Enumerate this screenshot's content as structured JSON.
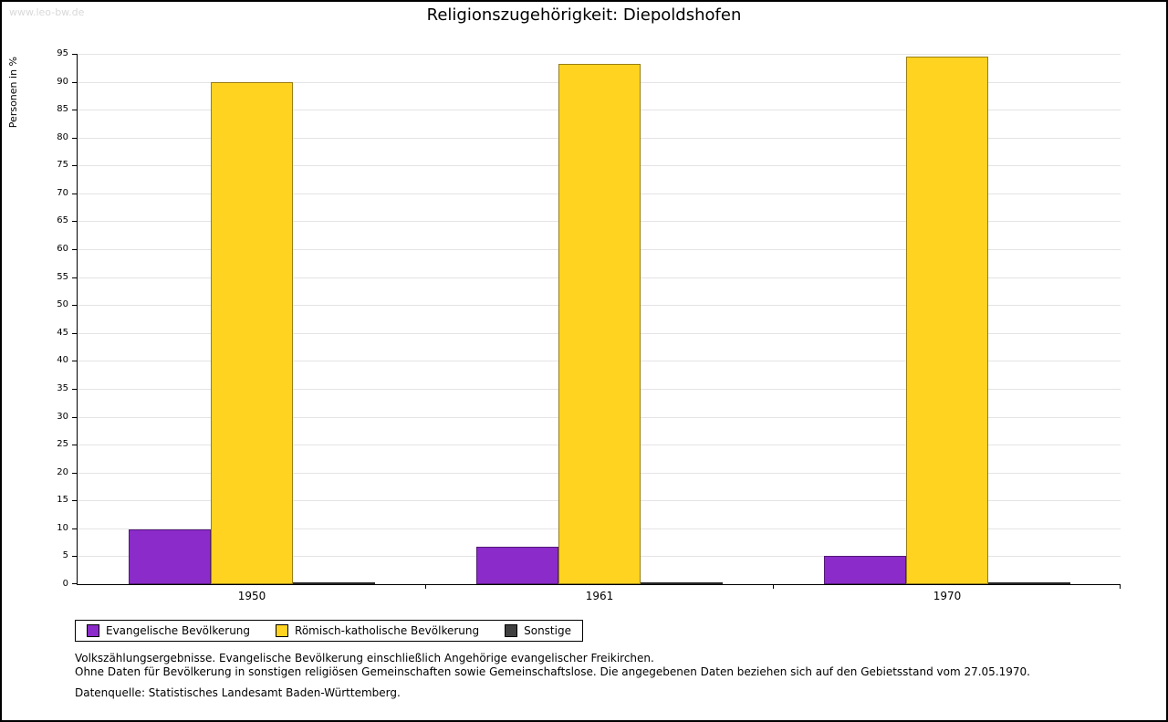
{
  "watermark": "www.leo-bw.de",
  "title": "Religionszugehörigkeit: Diepoldshofen",
  "chart_data": {
    "type": "bar",
    "title": "Religionszugehörigkeit: Diepoldshofen",
    "ylabel": "Personen in %",
    "xlabel": "",
    "categories": [
      "1950",
      "1961",
      "1970"
    ],
    "series": [
      {
        "name": "Evangelische Bevölkerung",
        "color": "#8b2bc9",
        "values": [
          9.8,
          6.7,
          5.1
        ]
      },
      {
        "name": "Römisch-katholische Bevölkerung",
        "color": "#ffd320",
        "values": [
          90.0,
          93.2,
          94.5
        ]
      },
      {
        "name": "Sonstige",
        "color": "#404040",
        "values": [
          0.2,
          0.1,
          0.4
        ]
      }
    ],
    "ylim": [
      0,
      95
    ],
    "ytick_step": 5,
    "grid": true,
    "legend_position": "bottom-left"
  },
  "footnotes": [
    "Volkszählungsergebnisse. Evangelische Bevölkerung einschließlich Angehörige evangelischer Freikirchen.",
    "Ohne Daten für Bevölkerung in sonstigen religiösen Gemeinschaften sowie Gemeinschaftslose. Die angegebenen Daten beziehen sich auf den Gebietsstand vom 27.05.1970.",
    "Datenquelle: Statistisches Landesamt Baden-Württemberg."
  ]
}
